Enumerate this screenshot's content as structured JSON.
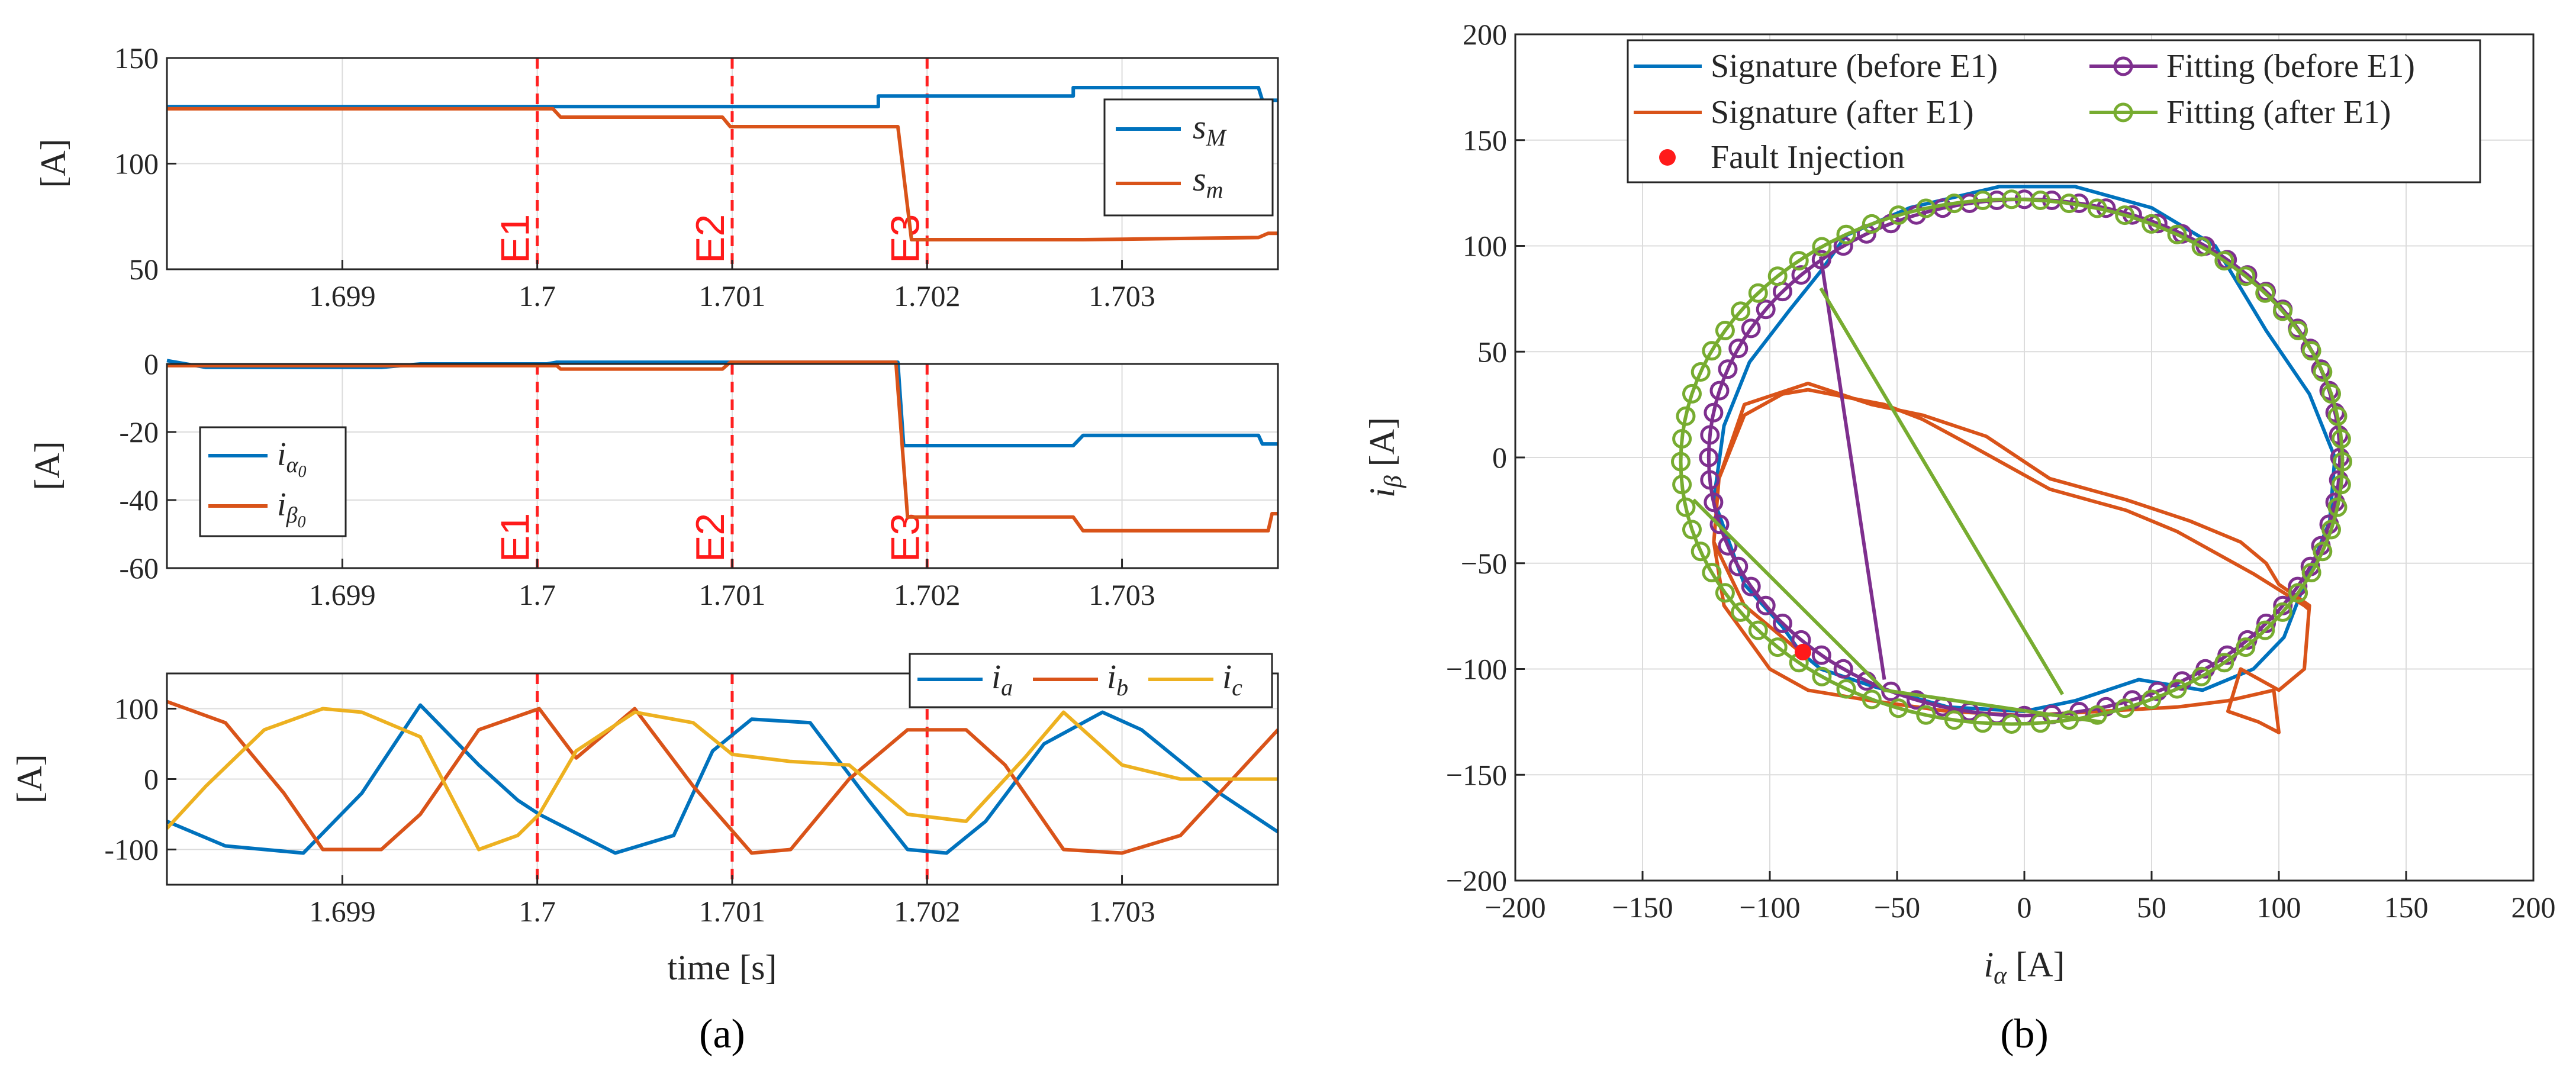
{
  "chart_data": [
    {
      "id": "a1",
      "type": "line",
      "xlim": [
        1.6981,
        1.7038
      ],
      "ylim": [
        50,
        150
      ],
      "xticks": [
        "1.699",
        "1.7",
        "1.701",
        "1.702",
        "1.703"
      ],
      "xtick_values": [
        1.699,
        1.7,
        1.701,
        1.702,
        1.703
      ],
      "yticks": [
        "50",
        "100",
        "150"
      ],
      "ytick_values": [
        50,
        100,
        150
      ],
      "ylabel": "[A]",
      "legend": "top-right",
      "events": [
        {
          "label": "E1",
          "x": 1.7
        },
        {
          "label": "E2",
          "x": 1.701
        },
        {
          "label": "E3",
          "x": 1.702
        }
      ],
      "series": [
        {
          "name": "s_M",
          "color": "#0072BD",
          "x": [
            1.6981,
            1.70175,
            1.70175,
            1.70275,
            1.70275,
            1.7037,
            1.70372,
            1.7038
          ],
          "y": [
            127,
            127,
            132,
            132,
            136,
            136,
            130,
            130
          ]
        },
        {
          "name": "s_m",
          "color": "#D95319",
          "x": [
            1.6981,
            1.70008,
            1.70012,
            1.70095,
            1.70099,
            1.70185,
            1.70192,
            1.7028,
            1.7037,
            1.70375,
            1.7038
          ],
          "y": [
            126,
            126,
            122,
            122,
            117.5,
            117.5,
            64,
            64,
            65,
            67,
            67
          ]
        }
      ]
    },
    {
      "id": "a2",
      "type": "line",
      "xlim": [
        1.6981,
        1.7038
      ],
      "ylim": [
        -60,
        0
      ],
      "xticks": [
        "1.699",
        "1.7",
        "1.701",
        "1.702",
        "1.703"
      ],
      "xtick_values": [
        1.699,
        1.7,
        1.701,
        1.702,
        1.703
      ],
      "yticks": [
        "0",
        "-20",
        "-40",
        "-60"
      ],
      "ytick_values": [
        0,
        -20,
        -40,
        -60
      ],
      "ylabel": "[A]",
      "legend": "left",
      "events": [
        {
          "label": "E1",
          "x": 1.7
        },
        {
          "label": "E2",
          "x": 1.701
        },
        {
          "label": "E3",
          "x": 1.702
        }
      ],
      "series": [
        {
          "name": "i_α0",
          "color": "#0072BD",
          "x": [
            1.6981,
            1.6983,
            1.6992,
            1.6994,
            1.70005,
            1.7001,
            1.70185,
            1.70188,
            1.70275,
            1.7028,
            1.7037,
            1.70372,
            1.7038
          ],
          "y": [
            1,
            -1,
            -1,
            0,
            0,
            0.5,
            0.5,
            -24,
            -24,
            -21,
            -21,
            -23.5,
            -23.5
          ]
        },
        {
          "name": "i_β0",
          "color": "#D95319",
          "x": [
            1.6981,
            1.7001,
            1.70012,
            1.70095,
            1.70099,
            1.70184,
            1.7019,
            1.70275,
            1.7028,
            1.70375,
            1.70377,
            1.7038
          ],
          "y": [
            -0.5,
            -0.5,
            -1.5,
            -1.5,
            0.5,
            0.5,
            -45,
            -45,
            -49,
            -49,
            -44,
            -44
          ]
        }
      ]
    },
    {
      "id": "a3",
      "type": "line",
      "xlim": [
        1.6981,
        1.7038
      ],
      "ylim": [
        -150,
        150
      ],
      "xticks": [
        "1.699",
        "1.7",
        "1.701",
        "1.702",
        "1.703"
      ],
      "xtick_values": [
        1.699,
        1.7,
        1.701,
        1.702,
        1.703
      ],
      "yticks": [
        "100",
        "0",
        "-100"
      ],
      "ytick_values": [
        100,
        0,
        -100
      ],
      "ylabel": "[A]",
      "xlabel": "time [s]",
      "legend": "top-right",
      "events": [
        {
          "label": "",
          "x": 1.7
        },
        {
          "label": "",
          "x": 1.701
        },
        {
          "label": "",
          "x": 1.702
        }
      ],
      "series": [
        {
          "name": "i_a",
          "color": "#0072BD",
          "x": [
            1.6981,
            1.6984,
            1.6988,
            1.6991,
            1.6994,
            1.6997,
            1.6999,
            1.70001,
            1.7004,
            1.7007,
            1.7009,
            1.7011,
            1.7014,
            1.7017,
            1.7019,
            1.7021,
            1.7023,
            1.7026,
            1.7029,
            1.7031,
            1.7035,
            1.7038
          ],
          "y": [
            -60,
            -95,
            -105,
            -20,
            105,
            20,
            -30,
            -50,
            -105,
            -80,
            40,
            85,
            80,
            -30,
            -100,
            -105,
            -60,
            50,
            95,
            70,
            -20,
            -75
          ]
        },
        {
          "name": "i_b",
          "color": "#D95319",
          "x": [
            1.6981,
            1.6984,
            1.6987,
            1.6989,
            1.6992,
            1.6994,
            1.6997,
            1.70001,
            1.7002,
            1.7005,
            1.7008,
            1.7011,
            1.7013,
            1.7016,
            1.7019,
            1.7022,
            1.7024,
            1.7027,
            1.703,
            1.7033,
            1.7036,
            1.7038
          ],
          "y": [
            110,
            80,
            -20,
            -100,
            -100,
            -50,
            70,
            100,
            30,
            100,
            -10,
            -105,
            -100,
            0,
            70,
            70,
            20,
            -100,
            -105,
            -80,
            10,
            70
          ]
        },
        {
          "name": "i_c",
          "color": "#EDB120",
          "x": [
            1.6981,
            1.6983,
            1.6986,
            1.6989,
            1.6991,
            1.6994,
            1.6997,
            1.6999,
            1.70001,
            1.7002,
            1.7005,
            1.7008,
            1.701,
            1.7013,
            1.7016,
            1.7019,
            1.7022,
            1.7025,
            1.7027,
            1.703,
            1.7033,
            1.7038
          ],
          "y": [
            -70,
            -10,
            70,
            100,
            95,
            60,
            -100,
            -80,
            -50,
            40,
            95,
            80,
            35,
            25,
            20,
            -50,
            -60,
            30,
            95,
            20,
            0,
            0
          ]
        }
      ]
    },
    {
      "id": "b",
      "type": "line",
      "xlim": [
        -200,
        200
      ],
      "ylim": [
        -200,
        200
      ],
      "xticks": [
        "−200",
        "−150",
        "−100",
        "−50",
        "0",
        "50",
        "100",
        "150",
        "200"
      ],
      "xtick_values": [
        -200,
        -150,
        -100,
        -50,
        0,
        50,
        100,
        150,
        200
      ],
      "yticks": [
        "200",
        "150",
        "100",
        "50",
        "0",
        "−50",
        "−100",
        "−150",
        "−200"
      ],
      "ytick_values": [
        200,
        150,
        100,
        50,
        0,
        -50,
        -100,
        -150,
        -200
      ],
      "xlabel": "i_α [A]",
      "ylabel": "i_β [A]",
      "legend": "top",
      "legend_entries": [
        "Signature (before E1)",
        "Fitting (before E1)",
        "Signature (after E1)",
        "Fitting (after E1)",
        "Fault Injection"
      ],
      "series": [
        {
          "name": "Signature (before E1)",
          "color": "#0072BD",
          "x": [
            -88,
            -95,
            -110,
            -122,
            -118,
            -108,
            -92,
            -80,
            -70,
            -45,
            -10,
            20,
            50,
            75,
            95,
            112,
            122,
            120,
            110,
            102,
            90,
            70,
            45,
            20,
            0,
            -30,
            -60,
            -80,
            -88
          ],
          "y": [
            -92,
            -80,
            -60,
            -20,
            15,
            45,
            70,
            88,
            105,
            118,
            128,
            128,
            118,
            100,
            60,
            30,
            0,
            -30,
            -60,
            -85,
            -100,
            -110,
            -105,
            -115,
            -120,
            -118,
            -108,
            -100,
            -92
          ]
        },
        {
          "name": "Signature (after E1)",
          "color": "#D95319",
          "x": [
            -88,
            -110,
            -122,
            -120,
            -110,
            -85,
            -60,
            -40,
            -15,
            10,
            40,
            65,
            85,
            95,
            100,
            112,
            110,
            100,
            85,
            80,
            92,
            100,
            98,
            80,
            60,
            30,
            0,
            -30,
            -60,
            -85,
            -100,
            -118,
            -122,
            -120,
            -110,
            -95,
            -85,
            -55,
            -40,
            -20,
            10,
            40,
            60,
            90,
            110,
            112
          ],
          "y": [
            -92,
            -70,
            -40,
            -10,
            25,
            35,
            25,
            20,
            10,
            -10,
            -20,
            -30,
            -40,
            -50,
            -60,
            -70,
            -100,
            -110,
            -100,
            -120,
            -125,
            -130,
            -110,
            -115,
            -118,
            -120,
            -122,
            -120,
            -115,
            -110,
            -100,
            -70,
            -40,
            -10,
            20,
            30,
            32,
            25,
            18,
            5,
            -15,
            -25,
            -35,
            -55,
            -70,
            -72
          ]
        },
        {
          "name": "Fitting (before E1)",
          "color": "#7E2F8E",
          "type": "ellipse",
          "cx": 0,
          "cy": 0,
          "rx": 124,
          "ry": 122,
          "markers": 72,
          "extra_segment": {
            "x": [
              -80,
              -55
            ],
            "y": [
              95,
              -105
            ]
          }
        },
        {
          "name": "Fitting (after E1)",
          "color": "#77AC30",
          "type": "ellipse",
          "cx": -5,
          "cy": -2,
          "rx": 130,
          "ry": 124,
          "markers": 72,
          "extra_segment": {
            "x": [
              -130,
              -55,
              30
            ],
            "y": [
              -20,
              -110,
              -125
            ]
          },
          "extra_segment2": {
            "x": [
              -80,
              15
            ],
            "y": [
              80,
              -112
            ]
          }
        },
        {
          "name": "Fault Injection",
          "color": "#FF1A1A",
          "type": "scatter",
          "x": [
            -87
          ],
          "y": [
            -92
          ]
        }
      ]
    }
  ],
  "panel_labels": {
    "a": "(a)",
    "b": "(b)"
  }
}
